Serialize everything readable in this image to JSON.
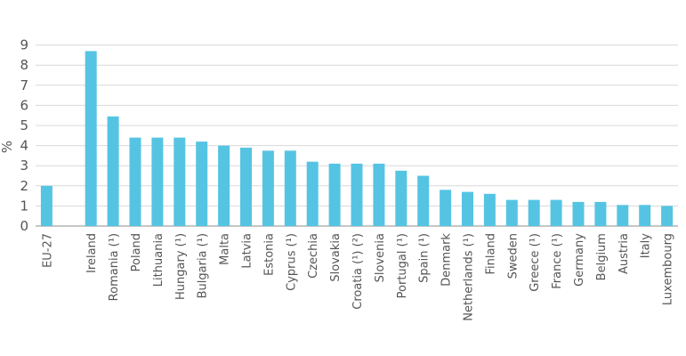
{
  "chart_data": {
    "type": "bar",
    "ylabel": "%",
    "ylim": [
      0,
      9
    ],
    "yticks": [
      0,
      1,
      2,
      3,
      4,
      5,
      6,
      7,
      8,
      9
    ],
    "grid": true,
    "bar_color": "#55c4e3",
    "categories": [
      "EU-27",
      "",
      "Ireland",
      "Romania (¹)",
      "Poland",
      "Lithuania",
      "Hungary (¹)",
      "Bulgaria (¹)",
      "Malta",
      "Latvia",
      "Estonia",
      "Cyprus (¹)",
      "Czechia",
      "Slovakia",
      "Croatia (¹) (²)",
      "Slovenia",
      "Portugal (¹)",
      "Spain (¹)",
      "Denmark",
      "Netherlands (¹)",
      "Finland",
      "Sweden",
      "Greece (¹)",
      "France (¹)",
      "Germany",
      "Belgium",
      "Austria",
      "Italy",
      "Luxembourg"
    ],
    "values": [
      2.0,
      null,
      8.7,
      5.45,
      4.4,
      4.4,
      4.4,
      4.2,
      4.0,
      3.9,
      3.75,
      3.75,
      3.2,
      3.1,
      3.1,
      3.1,
      2.75,
      2.5,
      1.8,
      1.7,
      1.6,
      1.3,
      1.3,
      1.3,
      1.2,
      1.2,
      1.05,
      1.05,
      1.0
    ]
  }
}
